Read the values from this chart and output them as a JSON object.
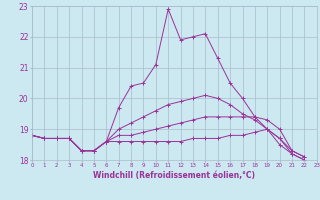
{
  "xlabel": "Windchill (Refroidissement éolien,°C)",
  "xlim": [
    0,
    23
  ],
  "ylim": [
    18,
    23
  ],
  "yticks": [
    18,
    19,
    20,
    21,
    22,
    23
  ],
  "xticks": [
    0,
    1,
    2,
    3,
    4,
    5,
    6,
    7,
    8,
    9,
    10,
    11,
    12,
    13,
    14,
    15,
    16,
    17,
    18,
    19,
    20,
    21,
    22,
    23
  ],
  "bg_color": "#cce8f0",
  "grid_color": "#aabbcc",
  "line_color": "#993399",
  "figsize": [
    3.2,
    2.0
  ],
  "dpi": 100,
  "series": [
    [
      18.8,
      18.7,
      18.7,
      18.7,
      18.3,
      18.3,
      18.6,
      19.7,
      20.4,
      20.5,
      21.1,
      22.9,
      21.9,
      22.0,
      22.1,
      21.3,
      20.5,
      20.0,
      19.4,
      19.0,
      18.7,
      18.2,
      18.0
    ],
    [
      18.8,
      18.7,
      18.7,
      18.7,
      18.3,
      18.3,
      18.6,
      18.8,
      18.8,
      18.9,
      19.0,
      19.1,
      19.2,
      19.3,
      19.4,
      19.4,
      19.4,
      19.4,
      19.4,
      19.3,
      19.0,
      18.3,
      18.1
    ],
    [
      18.8,
      18.7,
      18.7,
      18.7,
      18.3,
      18.3,
      18.6,
      18.6,
      18.6,
      18.6,
      18.6,
      18.6,
      18.6,
      18.7,
      18.7,
      18.7,
      18.8,
      18.8,
      18.9,
      19.0,
      18.5,
      18.2,
      18.0
    ],
    [
      18.8,
      18.7,
      18.7,
      18.7,
      18.3,
      18.3,
      18.6,
      19.0,
      19.2,
      19.4,
      19.6,
      19.8,
      19.9,
      20.0,
      20.1,
      20.0,
      19.8,
      19.5,
      19.3,
      19.0,
      18.7,
      18.3,
      18.1
    ]
  ]
}
